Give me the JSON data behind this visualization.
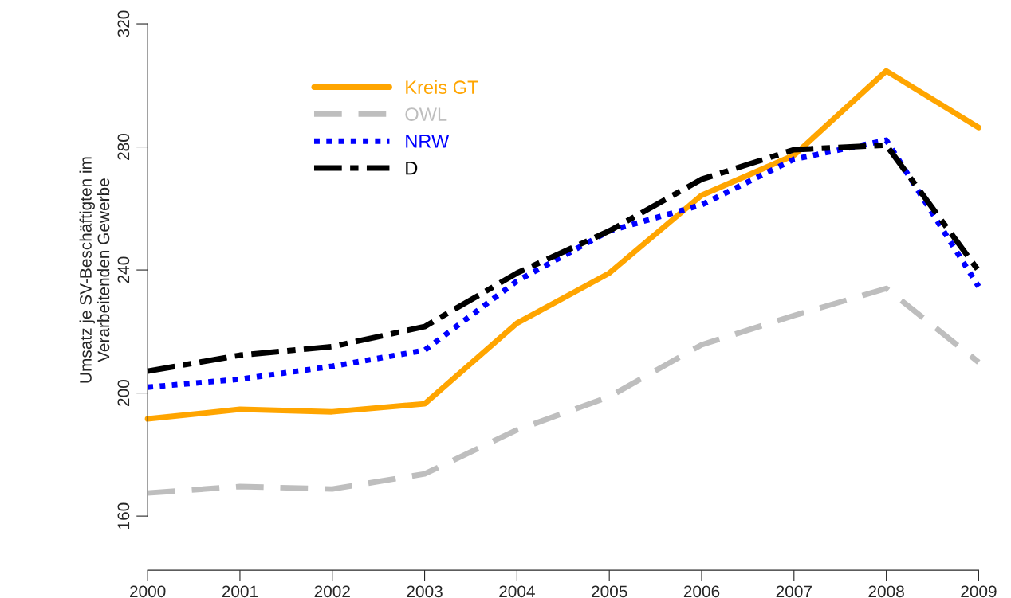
{
  "chart_data": {
    "type": "line",
    "ylabel": "Umsatz je SV-Beschäftigten im\nVerarbeitenden Gewerbe",
    "x": [
      2000,
      2001,
      2002,
      2003,
      2004,
      2005,
      2006,
      2007,
      2008,
      2009
    ],
    "xlim": [
      2000,
      2009
    ],
    "xticks": [
      2000,
      2001,
      2002,
      2003,
      2004,
      2005,
      2006,
      2007,
      2008,
      2009
    ],
    "ylim": [
      160,
      320
    ],
    "yticks": [
      160,
      200,
      240,
      280,
      320
    ],
    "grid": false,
    "legend": "top left",
    "marker": "none",
    "series": [
      {
        "name": "Kreis GT",
        "color": "#ffa500",
        "line_style": "solid",
        "values": [
          191.6,
          194.7,
          193.9,
          196.5,
          222.7,
          239,
          264.3,
          277.3,
          304.7,
          286.3
        ]
      },
      {
        "name": "OWL",
        "color": "#bebebe",
        "line_style": "dashed",
        "values": [
          167.5,
          169.6,
          168.8,
          173.7,
          188,
          198.8,
          215.7,
          225.2,
          234,
          210
        ]
      },
      {
        "name": "NRW",
        "color": "#0000ff",
        "line_style": "dotted",
        "values": [
          201.9,
          204.5,
          208.7,
          213.9,
          236.4,
          252.7,
          261.2,
          276,
          282.2,
          234.6
        ]
      },
      {
        "name": "D",
        "color": "#000000",
        "line_style": "dashdot",
        "values": [
          207.1,
          212.3,
          215.1,
          221.6,
          239,
          252.7,
          269.5,
          279.1,
          280.6,
          239.7
        ]
      }
    ]
  }
}
